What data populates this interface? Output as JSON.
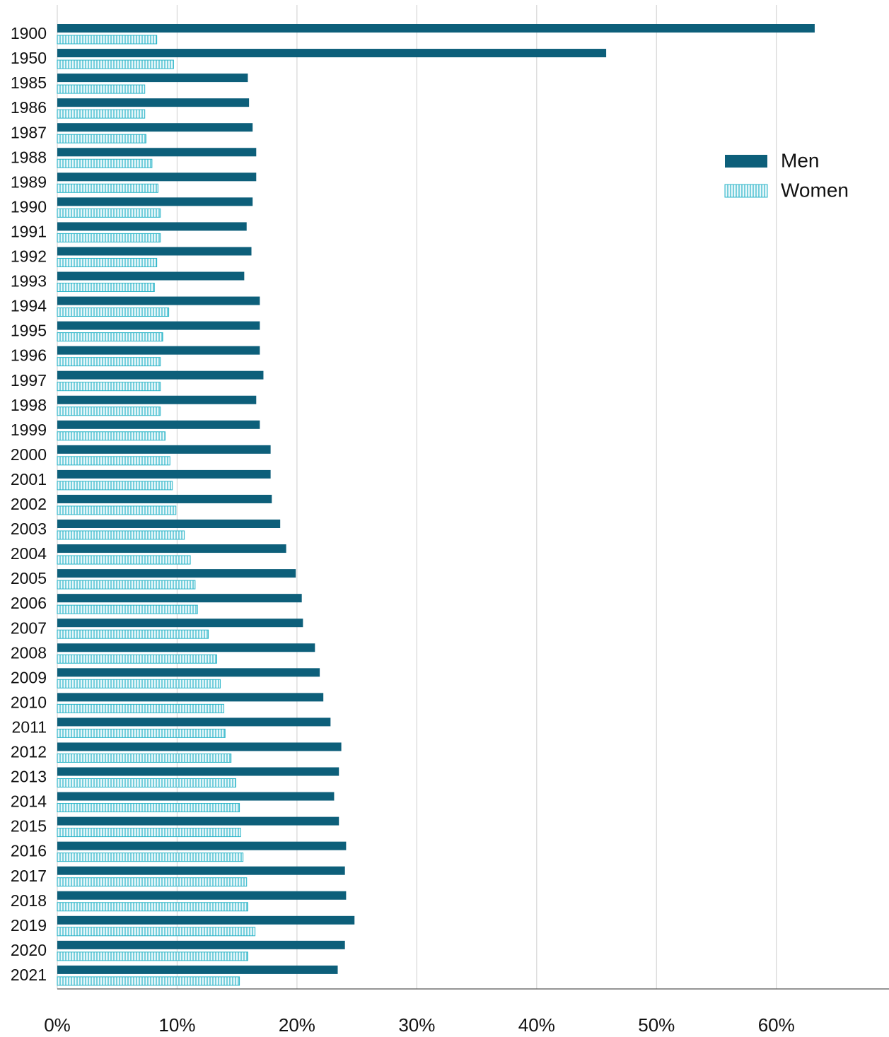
{
  "chart_data": {
    "type": "bar",
    "orientation": "horizontal",
    "categories": [
      "1900",
      "1950",
      "1985",
      "1986",
      "1987",
      "1988",
      "1989",
      "1990",
      "1991",
      "1992",
      "1993",
      "1994",
      "1995",
      "1996",
      "1997",
      "1998",
      "1999",
      "2000",
      "2001",
      "2002",
      "2003",
      "2004",
      "2005",
      "2006",
      "2007",
      "2008",
      "2009",
      "2010",
      "2011",
      "2012",
      "2013",
      "2014",
      "2015",
      "2016",
      "2017",
      "2018",
      "2019",
      "2020",
      "2021"
    ],
    "series": [
      {
        "name": "Men",
        "color": "#0d5f7a",
        "values": [
          63.2,
          45.8,
          15.9,
          16.0,
          16.3,
          16.6,
          16.6,
          16.3,
          15.8,
          16.2,
          15.6,
          16.9,
          16.9,
          16.9,
          17.2,
          16.6,
          16.9,
          17.8,
          17.8,
          17.9,
          18.6,
          19.1,
          19.9,
          20.4,
          20.5,
          21.5,
          21.9,
          22.2,
          22.8,
          23.7,
          23.5,
          23.1,
          23.5,
          24.1,
          24.0,
          24.1,
          24.8,
          24.0,
          23.4
        ]
      },
      {
        "name": "Women",
        "color": "#2bb5c8",
        "pattern": "vertical-stripes",
        "values": [
          8.3,
          9.7,
          7.3,
          7.3,
          7.4,
          7.9,
          8.4,
          8.6,
          8.6,
          8.3,
          8.1,
          9.3,
          8.8,
          8.6,
          8.6,
          8.6,
          9.0,
          9.4,
          9.6,
          9.9,
          10.6,
          11.1,
          11.5,
          11.7,
          12.6,
          13.3,
          13.6,
          13.9,
          14.0,
          14.5,
          14.9,
          15.2,
          15.3,
          15.5,
          15.8,
          15.9,
          16.5,
          15.9,
          15.2
        ]
      }
    ],
    "xlim": [
      0,
      69.4
    ],
    "xticks": [
      {
        "value": 0,
        "label": "0%"
      },
      {
        "value": 10,
        "label": "10%"
      },
      {
        "value": 20,
        "label": "20%"
      },
      {
        "value": 30,
        "label": "30%"
      },
      {
        "value": 40,
        "label": "40%"
      },
      {
        "value": 50,
        "label": "50%"
      },
      {
        "value": 60,
        "label": "60%"
      }
    ],
    "grid": true,
    "legend": "upper right"
  }
}
